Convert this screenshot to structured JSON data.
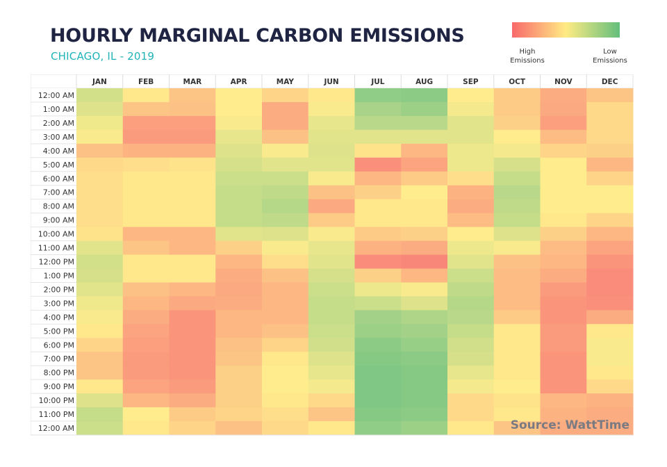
{
  "chart_data": {
    "type": "heatmap",
    "title": "HOURLY MARGINAL CARBON EMISSIONS",
    "subtitle": "CHICAGO, IL - 2019",
    "xlabel": "",
    "ylabel": "",
    "value_scale": "relative emissions intensity 0 (low) to 100 (high), estimated from color",
    "color_scale": {
      "low": "#63be7b",
      "mid": "#ffeb84",
      "high": "#f8696b"
    },
    "legend": {
      "high_label_1": "High",
      "high_label_2": "Emissions",
      "low_label_1": "Low",
      "low_label_2": "Emissions",
      "placement": "top-right"
    },
    "columns": [
      "JAN",
      "FEB",
      "MAR",
      "APR",
      "MAY",
      "JUN",
      "JUL",
      "AUG",
      "SEP",
      "OCT",
      "NOV",
      "DEC"
    ],
    "rows": [
      "12:00 AM",
      "1:00 AM",
      "2:00 AM",
      "3:00 AM",
      "4:00 AM",
      "5:00 AM",
      "6:00 AM",
      "7:00 AM",
      "8:00 AM",
      "9:00 AM",
      "10:00 AM",
      "11:00 AM",
      "12:00 PM",
      "1:00 PM",
      "2:00 PM",
      "3:00 PM",
      "4:00 PM",
      "5:00 PM",
      "6:00 PM",
      "7:00 PM",
      "8:00 PM",
      "9:00 PM",
      "10:00 PM",
      "11:00 PM",
      "12:00 AM"
    ],
    "values_by_month": {
      "JAN": [
        35,
        38,
        45,
        48,
        68,
        58,
        56,
        56,
        56,
        56,
        54,
        40,
        35,
        36,
        40,
        45,
        48,
        52,
        60,
        66,
        66,
        52,
        38,
        30,
        32
      ],
      "FEB": [
        52,
        66,
        82,
        84,
        74,
        56,
        52,
        52,
        52,
        52,
        72,
        66,
        52,
        52,
        68,
        72,
        76,
        80,
        82,
        84,
        84,
        80,
        72,
        50,
        52
      ],
      "MAR": [
        66,
        68,
        82,
        84,
        74,
        54,
        52,
        52,
        52,
        52,
        72,
        72,
        52,
        52,
        72,
        78,
        86,
        86,
        86,
        86,
        86,
        84,
        76,
        64,
        60
      ],
      "APR": [
        50,
        50,
        48,
        42,
        38,
        36,
        32,
        30,
        30,
        30,
        40,
        62,
        72,
        76,
        78,
        76,
        72,
        72,
        68,
        66,
        62,
        62,
        62,
        60,
        68
      ],
      "MAY": [
        60,
        76,
        76,
        68,
        48,
        40,
        32,
        28,
        24,
        28,
        38,
        48,
        56,
        68,
        72,
        72,
        72,
        68,
        60,
        52,
        50,
        50,
        52,
        56,
        58
      ],
      "JUN": [
        52,
        48,
        42,
        40,
        38,
        40,
        48,
        68,
        78,
        64,
        48,
        42,
        40,
        36,
        32,
        30,
        30,
        32,
        34,
        38,
        42,
        46,
        58,
        66,
        52
      ],
      "JUL": [
        12,
        20,
        26,
        40,
        54,
        88,
        72,
        62,
        52,
        52,
        64,
        74,
        90,
        62,
        44,
        32,
        18,
        16,
        10,
        8,
        6,
        6,
        6,
        8,
        12
      ],
      "AUG": [
        10,
        16,
        26,
        40,
        72,
        80,
        64,
        50,
        52,
        52,
        62,
        76,
        92,
        72,
        48,
        38,
        22,
        18,
        14,
        10,
        8,
        8,
        8,
        10,
        16
      ],
      "SEP": [
        50,
        46,
        40,
        40,
        44,
        44,
        56,
        74,
        76,
        70,
        50,
        44,
        40,
        32,
        28,
        24,
        26,
        30,
        34,
        36,
        42,
        46,
        58,
        58,
        52
      ],
      "OCT": [
        64,
        64,
        62,
        50,
        46,
        36,
        30,
        26,
        28,
        30,
        38,
        48,
        68,
        70,
        70,
        70,
        64,
        52,
        52,
        52,
        52,
        50,
        54,
        52,
        66
      ],
      "NOV": [
        76,
        78,
        82,
        70,
        60,
        50,
        50,
        50,
        50,
        52,
        62,
        70,
        72,
        76,
        84,
        86,
        86,
        84,
        84,
        86,
        86,
        86,
        72,
        74,
        76
      ],
      "DEC": [
        66,
        58,
        58,
        58,
        62,
        72,
        60,
        50,
        50,
        60,
        72,
        80,
        86,
        90,
        90,
        88,
        76,
        52,
        48,
        48,
        52,
        58,
        74,
        76,
        76
      ]
    },
    "annotation": "Source: WattTime"
  }
}
